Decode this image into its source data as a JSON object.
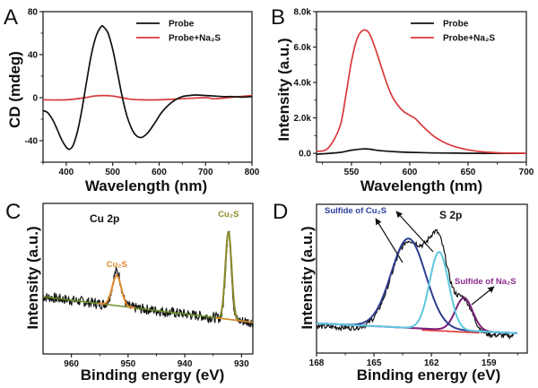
{
  "figure": {
    "panels": [
      "A",
      "B",
      "C",
      "D"
    ]
  },
  "chart_data": [
    {
      "panel": "A",
      "type": "line",
      "title": "",
      "xlabel": "Wavelength (nm)",
      "ylabel": "CD (mdeg)",
      "xlim": [
        350,
        800
      ],
      "ylim": [
        -60,
        80
      ],
      "xticks": [
        400,
        500,
        600,
        700,
        800
      ],
      "xtick_labels": [
        "400",
        "500",
        "600",
        "700",
        "800"
      ],
      "yticks": [
        -40,
        0,
        40,
        80
      ],
      "ytick_labels": [
        "-40",
        "0",
        "40",
        "80"
      ],
      "grid": false,
      "legend": {
        "placement": "top-right",
        "entries": [
          {
            "label": "Probe",
            "color": "#111111"
          },
          {
            "label": "Probe+Na₂S",
            "color": "#d93a3a"
          }
        ]
      },
      "series": [
        {
          "name": "Probe",
          "color": "#111111",
          "x": [
            350,
            360,
            370,
            380,
            390,
            400,
            407,
            415,
            425,
            435,
            445,
            455,
            465,
            475,
            480,
            490,
            500,
            510,
            520,
            530,
            540,
            550,
            562,
            575,
            590,
            605,
            620,
            635,
            650,
            665,
            680,
            700,
            720,
            740,
            760,
            780,
            800
          ],
          "y": [
            -12,
            -14,
            -20,
            -29,
            -39,
            -46,
            -48,
            -44,
            -30,
            -8,
            18,
            42,
            58,
            66,
            66,
            60,
            45,
            24,
            2,
            -16,
            -28,
            -35,
            -37,
            -33,
            -24,
            -14,
            -7,
            -2,
            1,
            2,
            2.5,
            2,
            1.5,
            1,
            1,
            0.5,
            1
          ]
        },
        {
          "name": "Probe+Na₂S",
          "color": "#d93a3a",
          "x": [
            350,
            400,
            440,
            460,
            480,
            500,
            520,
            540,
            560,
            600,
            650,
            700,
            720,
            760,
            800
          ],
          "y": [
            -2,
            -2,
            0,
            1.5,
            2,
            1.5,
            0,
            -1.5,
            -2,
            -2,
            -1,
            0,
            -1,
            0.5,
            2
          ]
        }
      ]
    },
    {
      "panel": "B",
      "type": "line",
      "title": "",
      "xlabel": "Wavelength (nm)",
      "ylabel": "Intensity (a.u.)",
      "xlim": [
        520,
        700
      ],
      "ylim": [
        -500,
        8000
      ],
      "xticks": [
        550,
        600,
        650,
        700
      ],
      "xtick_labels": [
        "550",
        "600",
        "650",
        "700"
      ],
      "yticks": [
        0,
        2000,
        4000,
        6000,
        8000
      ],
      "ytick_labels": [
        "0.0",
        "2.0k",
        "4.0k",
        "6.0k",
        "8.0k"
      ],
      "grid": false,
      "legend": {
        "placement": "top-right",
        "entries": [
          {
            "label": "Probe",
            "color": "#111111"
          },
          {
            "label": "Probe+Na₂S",
            "color": "#d93a3a"
          }
        ]
      },
      "series": [
        {
          "name": "Probe",
          "color": "#111111",
          "x": [
            520,
            540,
            550,
            560,
            565,
            575,
            590,
            610,
            640,
            670,
            700
          ],
          "y": [
            -50,
            50,
            180,
            250,
            240,
            150,
            80,
            40,
            10,
            0,
            0
          ]
        },
        {
          "name": "Probe+Na₂S",
          "color": "#d93a3a",
          "x": [
            520,
            530,
            540,
            545,
            550,
            555,
            560,
            565,
            570,
            575,
            580,
            585,
            590,
            595,
            600,
            605,
            610,
            620,
            630,
            640,
            650,
            660,
            670,
            680,
            690,
            700
          ],
          "y": [
            100,
            300,
            1500,
            3200,
            5200,
            6500,
            6950,
            6800,
            6000,
            5000,
            4000,
            3200,
            2700,
            2350,
            2150,
            1950,
            1600,
            1000,
            600,
            350,
            200,
            100,
            50,
            20,
            10,
            0
          ]
        }
      ]
    },
    {
      "panel": "C",
      "type": "line",
      "title": "Cu 2p",
      "xlabel": "Binding energy (eV)",
      "ylabel": "Intensity (a.u.)",
      "xlim": [
        965,
        928
      ],
      "ylim": [
        0,
        1
      ],
      "xticks": [
        960,
        950,
        940,
        930
      ],
      "xtick_labels": [
        "960",
        "950",
        "940",
        "930"
      ],
      "yticks": [],
      "grid": false,
      "annotations": [
        {
          "text": "Cu₂S",
          "x": 952,
          "color": "#e08a2c"
        },
        {
          "text": "Cu₂S",
          "x": 932.3,
          "color": "#8a8a2a"
        }
      ],
      "series": [
        {
          "name": "Raw data",
          "color": "#111111",
          "noisy": true,
          "baseline": [
            [
              965,
              0.38
            ],
            [
              928,
              0.21
            ]
          ],
          "peaks": [
            {
              "center": 952.0,
              "height": 0.23,
              "sigma": 0.75
            },
            {
              "center": 932.3,
              "height": 0.58,
              "sigma": 0.5
            }
          ]
        },
        {
          "name": "Fit Cu2S 952",
          "color": "#e08a2c",
          "center": 952.0,
          "height": 0.2,
          "sigma": 0.8
        },
        {
          "name": "Fit Cu2S 932",
          "color": "#8a8a2a",
          "center": 932.3,
          "height": 0.58,
          "sigma": 0.55
        },
        {
          "name": "Background",
          "color": "#6b8e23",
          "baseline": [
            [
              965,
              0.38
            ],
            [
              928,
              0.21
            ]
          ]
        }
      ]
    },
    {
      "panel": "D",
      "type": "line",
      "title": "S 2p",
      "xlabel": "Binding energy (eV)",
      "ylabel": "Intensity (a.u.)",
      "xlim": [
        168,
        157
      ],
      "ylim": [
        0,
        1
      ],
      "xticks": [
        168,
        165,
        162,
        159
      ],
      "xtick_labels": [
        "168",
        "165",
        "162",
        "159"
      ],
      "yticks": [],
      "grid": false,
      "annotations": [
        {
          "text": "Sulfide of Cu₂S",
          "color": "#2d3f9e"
        },
        {
          "text": "Sulfide of Na₂S",
          "color": "#8b2a8b"
        }
      ],
      "series": [
        {
          "name": "Raw data",
          "color": "#111111",
          "noisy": true
        },
        {
          "name": "Cu2S component 1",
          "color": "#2e3d8f",
          "center": 163.2,
          "height": 0.6,
          "sigma": 0.9
        },
        {
          "name": "Cu2S component 2",
          "color": "#5ec8e0",
          "center": 161.6,
          "height": 0.52,
          "sigma": 0.5
        },
        {
          "name": "Na2S component",
          "color": "#7a1f7a",
          "center": 160.3,
          "height": 0.22,
          "sigma": 0.45
        },
        {
          "name": "Background",
          "color": "#e03030",
          "baseline": [
            [
              168,
              0.2
            ],
            [
              157,
              0.13
            ]
          ]
        }
      ]
    }
  ]
}
